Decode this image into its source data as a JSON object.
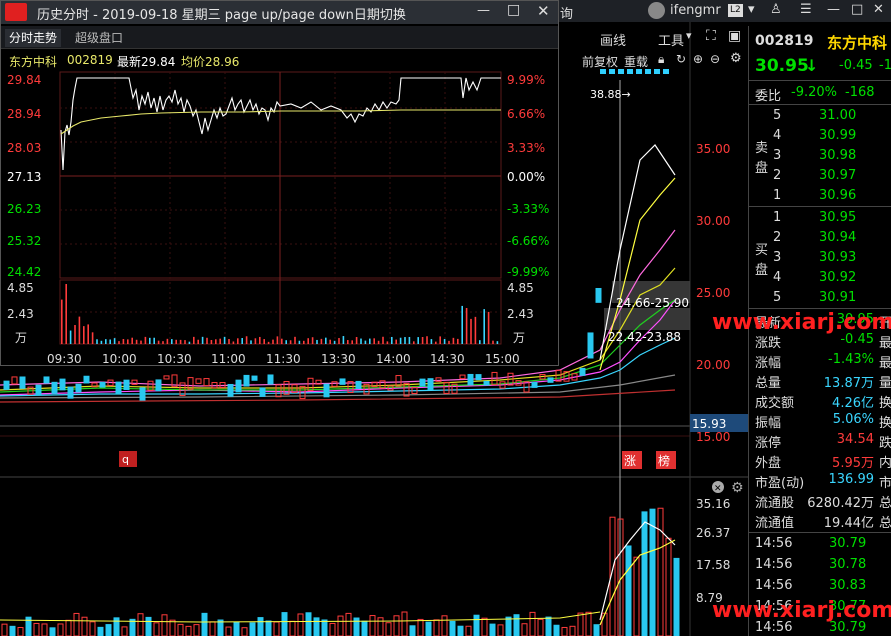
{
  "window": {
    "title": "历史分时 - 2019-09-18 星期三 page up/page down日期切换",
    "minimize_glyph": "—",
    "maximize_glyph": "□",
    "close_glyph": "✕"
  },
  "top_bar": {
    "partial_tab": "询",
    "user": "ifengmr",
    "level_badge": "L2"
  },
  "dialog_tabs": [
    {
      "label": "分时走势",
      "active": true
    },
    {
      "label": "超级盘口",
      "active": false
    }
  ],
  "intraday_header": {
    "name": "东方中科",
    "code": "002819",
    "latest": "最新29.84",
    "avg": "均价28.96"
  },
  "intraday_chart": {
    "price_labels": [
      "29.84",
      "28.94",
      "28.03",
      "27.13",
      "26.23",
      "25.32",
      "24.42"
    ],
    "pct_labels": [
      "9.99%",
      "6.66%",
      "3.33%",
      "0.00%",
      "-3.33%",
      "-6.66%",
      "-9.99%"
    ],
    "vol_labels": [
      "4.85",
      "2.43",
      "万"
    ],
    "vol_labels_right": [
      "4.85",
      "2.43",
      "万"
    ],
    "time_labels": [
      "09:30",
      "10:00",
      "10:30",
      "11:00",
      "11:30",
      "13:30",
      "14:00",
      "14:30",
      "15:00"
    ],
    "prev_close": 27.13,
    "ylim": [
      24.42,
      29.84
    ]
  },
  "kline_toolbar": {
    "draw": "画线",
    "tools": "工具",
    "restore": "前复权",
    "overlay": "重载"
  },
  "kline_chart": {
    "max_label": "38.88→",
    "price_axis": [
      "35.00",
      "30.00",
      "25.00",
      "20.00",
      "15.00"
    ],
    "current_price_tag": "15.93",
    "zone_labels": [
      "24.66-25.90",
      "22.42-23.88"
    ],
    "marks": {
      "q": "q",
      "zhang": "涨",
      "bang": "榜"
    },
    "volume_axis": [
      "35.16",
      "26.37",
      "17.58",
      "8.79"
    ]
  },
  "quote_panel": {
    "code": "002819",
    "name": "东方中科",
    "price": "30.95",
    "change": "-0.45",
    "change_partial": "-1",
    "weibi_label": "委比",
    "weibi_pct": "-9.20%",
    "weibi_vol": "-168",
    "sell_label": [
      "卖",
      "盘"
    ],
    "buy_label": [
      "买",
      "盘"
    ],
    "sell": [
      {
        "level": "5",
        "price": "31.00"
      },
      {
        "level": "4",
        "price": "30.99"
      },
      {
        "level": "3",
        "price": "30.98"
      },
      {
        "level": "2",
        "price": "30.97"
      },
      {
        "level": "1",
        "price": "30.96"
      }
    ],
    "buy": [
      {
        "level": "1",
        "price": "30.95"
      },
      {
        "level": "2",
        "price": "30.94"
      },
      {
        "level": "3",
        "price": "30.93"
      },
      {
        "level": "4",
        "price": "30.92"
      },
      {
        "level": "5",
        "price": "30.91"
      }
    ],
    "stats": [
      {
        "label": "最新",
        "value": "30.95",
        "extra": "开",
        "color": "green"
      },
      {
        "label": "涨跌",
        "value": "-0.45",
        "extra": "最",
        "color": "green"
      },
      {
        "label": "涨幅",
        "value": "-1.43%",
        "extra": "最",
        "color": "green"
      },
      {
        "label": "总量",
        "value": "13.87万",
        "extra": "量",
        "color": "cyan"
      },
      {
        "label": "成交额",
        "value": "4.26亿",
        "extra": "换",
        "color": "cyan"
      },
      {
        "label": "振幅",
        "value": "5.06%",
        "extra": "换",
        "color": "cyan"
      },
      {
        "label": "涨停",
        "value": "34.54",
        "extra": "跌",
        "color": "red"
      },
      {
        "label": "外盘",
        "value": "5.95万",
        "extra": "内",
        "color": "red"
      },
      {
        "label": "市盈(动)",
        "value": "136.99",
        "extra": "市",
        "color": "cyan"
      },
      {
        "label": "流通股",
        "value": "6280.42万",
        "extra": "总",
        "color": "white"
      },
      {
        "label": "流通值",
        "value": "19.44亿",
        "extra": "总",
        "color": "white"
      }
    ],
    "ticks": [
      {
        "time": "14:56",
        "price": "30.79"
      },
      {
        "time": "14:56",
        "price": "30.78"
      },
      {
        "time": "14:56",
        "price": "30.83"
      },
      {
        "time": "14:56",
        "price": "30.77"
      },
      {
        "time": "14:56",
        "price": "30.79"
      }
    ]
  },
  "watermark": "www.xiarj.com",
  "colors": {
    "up": "#ff3b3b",
    "down": "#00e000",
    "cyan": "#3ad6ff",
    "avg": "#e8e86a"
  }
}
